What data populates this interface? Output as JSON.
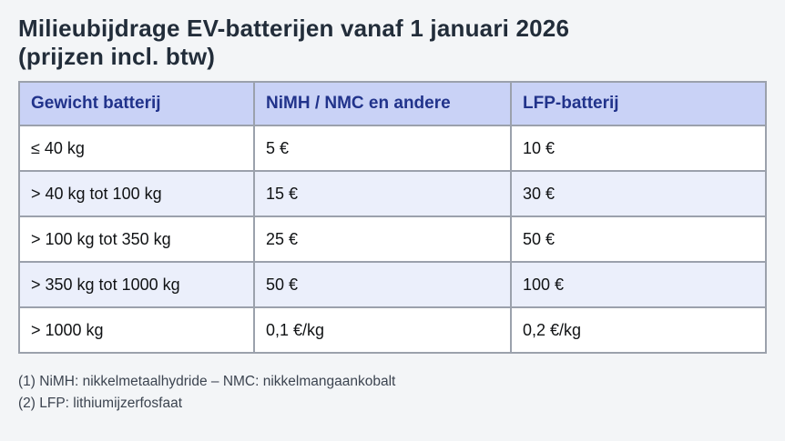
{
  "page": {
    "title_line1": "Milieubijdrage EV-batterijen vanaf 1 januari 2026",
    "title_line2": "(prijzen incl. btw)"
  },
  "table": {
    "columns": [
      "Gewicht batterij",
      "NiMH / NMC en andere",
      "LFP-batterij"
    ],
    "rows": [
      [
        "≤ 40 kg",
        "5 €",
        "10 €"
      ],
      [
        "> 40 kg tot 100 kg",
        "15 €",
        "30 €"
      ],
      [
        "> 100 kg tot 350 kg",
        "25 €",
        "50 €"
      ],
      [
        "> 350 kg tot 1000 kg",
        "50 €",
        "100 €"
      ],
      [
        "> 1000 kg",
        "0,1 €/kg",
        "0,2 €/kg"
      ]
    ]
  },
  "footnotes": [
    "(1) NiMH: nikkelmetaalhydride – NMC: nikkelmangaankobalt",
    "(2) LFP: lithiumijzerfosfaat"
  ],
  "colors": {
    "page_bg": "#f3f5f7",
    "title_text": "#222d3a",
    "header_bg": "#c9d2f6",
    "header_text": "#21338b",
    "row_alt_bg": "#ebeffb",
    "border": "#9ba1ac",
    "cell_text": "#101214",
    "footnote_text": "#3c4450"
  }
}
